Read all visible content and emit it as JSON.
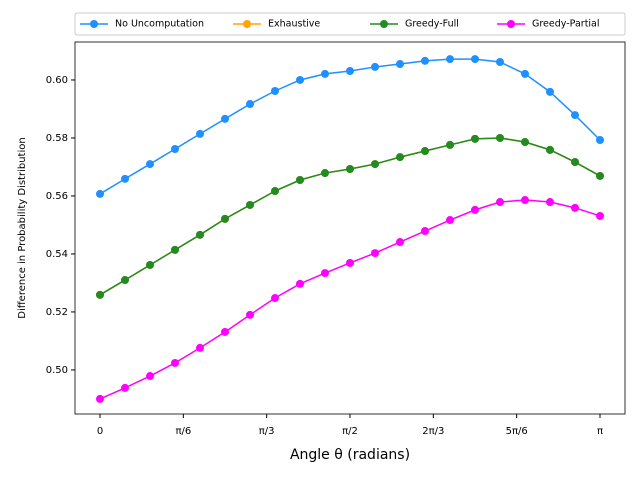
{
  "chart_data": {
    "type": "line",
    "xlabel": "Angle θ (radians)",
    "ylabel": "Difference in Probability Distribution",
    "x": [
      0,
      0.1571,
      0.3142,
      0.4712,
      0.6283,
      0.7854,
      0.9425,
      1.0996,
      1.2566,
      1.4137,
      1.5708,
      1.7279,
      1.885,
      2.042,
      2.1991,
      2.3562,
      2.5133,
      2.6704,
      2.8274,
      2.9845,
      3.1416
    ],
    "series": [
      {
        "name": "No Uncomputation",
        "color": "#1e90ff",
        "values": [
          0.5607,
          0.5659,
          0.571,
          0.5762,
          0.5814,
          0.5866,
          0.5917,
          0.5962,
          0.6,
          0.6021,
          0.6031,
          0.6045,
          0.6055,
          0.6066,
          0.6072,
          0.6072,
          0.6062,
          0.6021,
          0.5959,
          0.5879,
          0.5793
        ]
      },
      {
        "name": "Exhaustive",
        "color": "#ffa500",
        "values": [
          0.5259,
          0.531,
          0.5362,
          0.5414,
          0.5466,
          0.5521,
          0.5569,
          0.5617,
          0.5655,
          0.5679,
          0.5693,
          0.571,
          0.5734,
          0.5755,
          0.5776,
          0.5797,
          0.58,
          0.5786,
          0.5759,
          0.5717,
          0.5669
        ]
      },
      {
        "name": "Greedy-Full",
        "color": "#228b22",
        "values": [
          0.5259,
          0.531,
          0.5362,
          0.5414,
          0.5466,
          0.5521,
          0.5569,
          0.5617,
          0.5655,
          0.5679,
          0.5693,
          0.571,
          0.5734,
          0.5755,
          0.5776,
          0.5797,
          0.58,
          0.5786,
          0.5759,
          0.5717,
          0.5669
        ]
      },
      {
        "name": "Greedy-Partial",
        "color": "#ff00ff",
        "values": [
          0.49,
          0.4938,
          0.4979,
          0.5024,
          0.5076,
          0.5131,
          0.519,
          0.5248,
          0.5297,
          0.5334,
          0.5369,
          0.5403,
          0.5441,
          0.5479,
          0.5517,
          0.5552,
          0.5579,
          0.5586,
          0.5579,
          0.5559,
          0.5531
        ]
      }
    ],
    "xlim": [
      -0.1571,
      3.2987
    ],
    "ylim": [
      0.4848,
      0.6131
    ],
    "xticks": [
      0,
      {
        "value": 0.5236,
        "label": "π/6"
      },
      {
        "value": 1.0472,
        "label": "π/3"
      },
      {
        "value": 1.5708,
        "label": "π/2"
      },
      {
        "value": 2.0944,
        "label": "2π/3"
      },
      {
        "value": 2.618,
        "label": "5π/6"
      },
      {
        "value": 3.1416,
        "label": "π"
      }
    ],
    "yticks": [
      {
        "value": 0.5,
        "label": "0.50"
      },
      {
        "value": 0.52,
        "label": "0.52"
      },
      {
        "value": 0.54,
        "label": "0.54"
      },
      {
        "value": 0.56,
        "label": "0.56"
      },
      {
        "value": 0.58,
        "label": "0.58"
      },
      {
        "value": 0.6,
        "label": "0.60"
      }
    ],
    "grid": false,
    "legend": "top"
  }
}
